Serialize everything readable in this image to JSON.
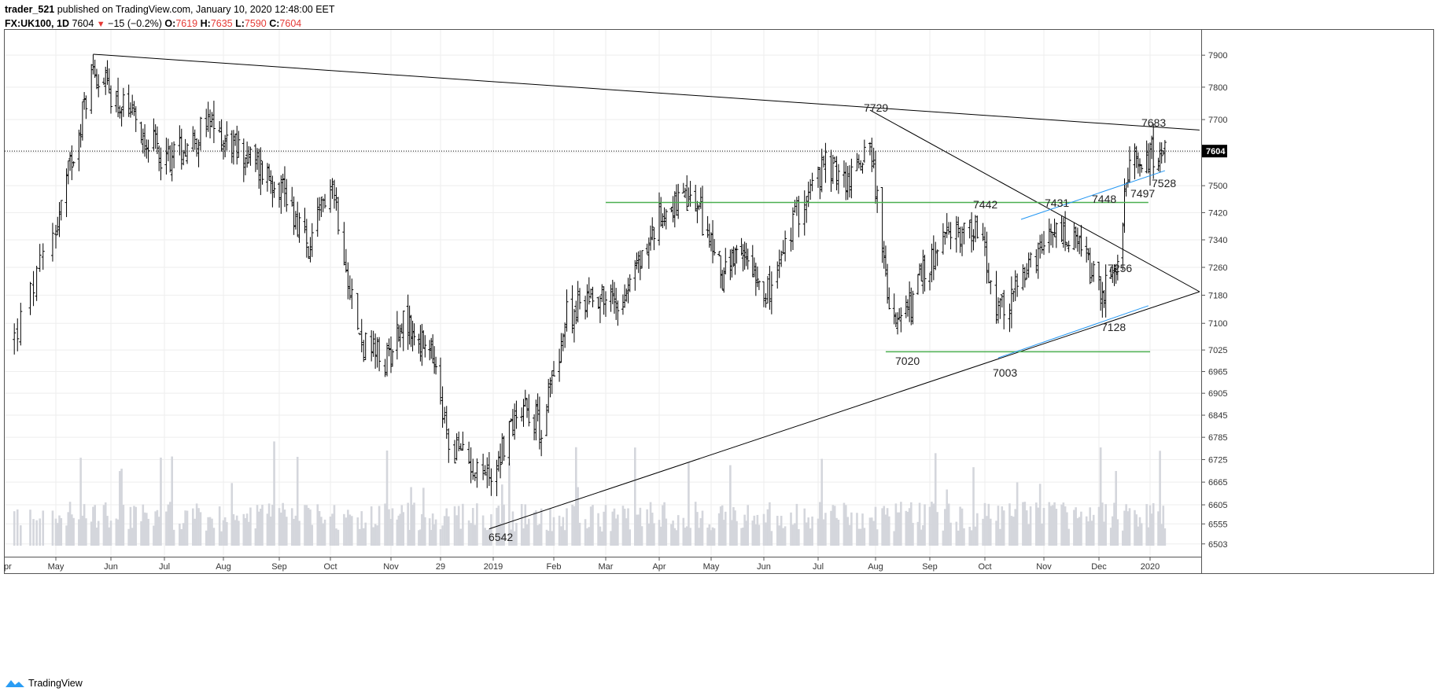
{
  "header": {
    "publisher": "trader_521",
    "published_text": "published on TradingView.com, January 10, 2020 12:48:00 EET",
    "symbol": "FX:UK100, 1D",
    "last": "7604",
    "change": "−15 (−0.2%)",
    "o_label": "O:",
    "o_value": "7619",
    "h_label": "H:",
    "h_value": "7635",
    "l_label": "L:",
    "l_value": "7590",
    "c_label": "C:",
    "c_value": "7604"
  },
  "footer": {
    "brand": "TradingView"
  },
  "colors": {
    "bars": "#000000",
    "volume": "#d4d6dc",
    "green_line": "#4caf50",
    "blue_line": "#2196f3",
    "trend_line": "#000000",
    "grid": "#eeeeee"
  },
  "chart_data": {
    "type": "ohlc",
    "symbol": "FX:UK100",
    "interval": "1D",
    "y_scale": "log",
    "ylim": [
      6470,
      7980
    ],
    "y_ticks": [
      7900,
      7800,
      7700,
      7600,
      7500,
      7420,
      7340,
      7260,
      7180,
      7100,
      7025,
      6965,
      6905,
      6845,
      6785,
      6725,
      6665,
      6605,
      6555,
      6503
    ],
    "x_labels": [
      "pr",
      "May",
      "Jun",
      "Jul",
      "Aug",
      "Sep",
      "Oct",
      "Nov",
      "29",
      "2019",
      "Feb",
      "Mar",
      "Apr",
      "May",
      "Jun",
      "Jul",
      "Aug",
      "Sep",
      "Oct",
      "Nov",
      "Dec",
      "2020"
    ],
    "current_price_label": "7604",
    "current_price": 7604,
    "trend_lines": [
      {
        "color": "black",
        "points": [
          [
            "2018-05-22",
            7903
          ],
          [
            "2020-01-31",
            7668
          ]
        ]
      },
      {
        "color": "black",
        "points": [
          [
            "2018-12-27",
            6542
          ],
          [
            "2020-01-31",
            7190
          ]
        ]
      },
      {
        "color": "black",
        "points": [
          [
            "2019-07-29",
            7729
          ],
          [
            "2020-01-31",
            7190
          ]
        ]
      },
      {
        "color": "green",
        "points": [
          [
            "2019-03-01",
            7450
          ],
          [
            "2019-12-31",
            7450
          ]
        ]
      },
      {
        "color": "green",
        "points": [
          [
            "2019-08-07",
            7020
          ],
          [
            "2020-01-01",
            7020
          ]
        ]
      },
      {
        "color": "blue",
        "points": [
          [
            "2019-10-08",
            7003
          ],
          [
            "2019-12-31",
            7150
          ]
        ]
      },
      {
        "color": "blue",
        "points": [
          [
            "2019-10-20",
            7400
          ],
          [
            "2020-01-10",
            7545
          ]
        ]
      }
    ],
    "annotations": [
      {
        "label": "7729",
        "value": 7729
      },
      {
        "label": "7683",
        "value": 7683
      },
      {
        "label": "7442",
        "value": 7442
      },
      {
        "label": "7431",
        "value": 7431
      },
      {
        "label": "7448",
        "value": 7448
      },
      {
        "label": "7497",
        "value": 7497
      },
      {
        "label": "7528",
        "value": 7528
      },
      {
        "label": "7256",
        "value": 7256
      },
      {
        "label": "7128",
        "value": 7128
      },
      {
        "label": "7020",
        "value": 7020
      },
      {
        "label": "7003",
        "value": 7003
      },
      {
        "label": "6542",
        "value": 6542
      }
    ],
    "ohlc_anchors": [
      [
        "2018-04-18",
        7060
      ],
      [
        "2018-05-02",
        7400
      ],
      [
        "2018-05-22",
        7860
      ],
      [
        "2018-06-12",
        7700
      ],
      [
        "2018-07-02",
        7580
      ],
      [
        "2018-07-24",
        7680
      ],
      [
        "2018-08-14",
        7590
      ],
      [
        "2018-09-05",
        7500
      ],
      [
        "2018-09-20",
        7300
      ],
      [
        "2018-10-01",
        7540
      ],
      [
        "2018-10-16",
        7050
      ],
      [
        "2018-10-29",
        6990
      ],
      [
        "2018-11-08",
        7110
      ],
      [
        "2018-11-28",
        7000
      ],
      [
        "2018-12-07",
        6770
      ],
      [
        "2018-12-27",
        6680
      ],
      [
        "2019-01-15",
        6890
      ],
      [
        "2019-01-25",
        6810
      ],
      [
        "2019-02-08",
        7120
      ],
      [
        "2019-02-22",
        7190
      ],
      [
        "2019-03-08",
        7160
      ],
      [
        "2019-03-22",
        7290
      ],
      [
        "2019-04-05",
        7440
      ],
      [
        "2019-04-22",
        7450
      ],
      [
        "2019-05-08",
        7240
      ],
      [
        "2019-05-24",
        7300
      ],
      [
        "2019-06-06",
        7180
      ],
      [
        "2019-06-20",
        7420
      ],
      [
        "2019-07-05",
        7560
      ],
      [
        "2019-07-18",
        7510
      ],
      [
        "2019-07-29",
        7650
      ],
      [
        "2019-08-07",
        7210
      ],
      [
        "2019-08-15",
        7080
      ],
      [
        "2019-08-30",
        7250
      ],
      [
        "2019-09-12",
        7350
      ],
      [
        "2019-09-27",
        7380
      ],
      [
        "2019-10-08",
        7120
      ],
      [
        "2019-10-24",
        7250
      ],
      [
        "2019-11-08",
        7360
      ],
      [
        "2019-11-22",
        7310
      ],
      [
        "2019-12-03",
        7180
      ],
      [
        "2019-12-12",
        7250
      ],
      [
        "2019-12-20",
        7560
      ],
      [
        "2020-01-03",
        7600
      ],
      [
        "2020-01-10",
        7604
      ]
    ]
  }
}
